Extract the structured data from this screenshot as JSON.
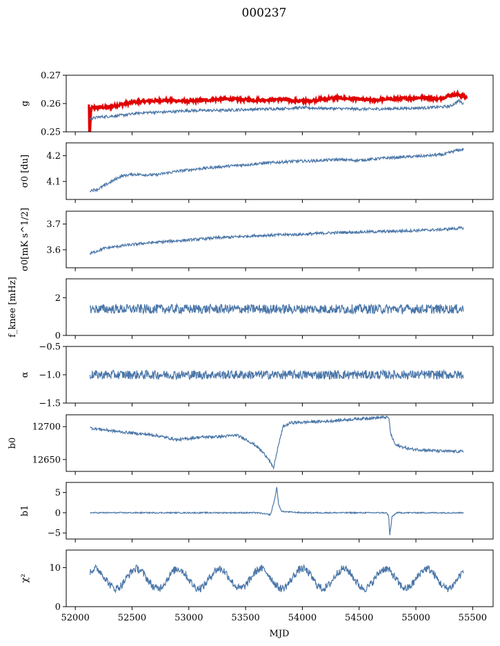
{
  "figure": {
    "title": "000237",
    "xlabel": "MJD",
    "x_ticks": [
      "52000",
      "52500",
      "53000",
      "53500",
      "54000",
      "54500",
      "55000",
      "55500"
    ]
  },
  "chart_data": [
    {
      "type": "line",
      "ylabel": "g",
      "ylim": [
        0.25,
        0.27
      ],
      "yticks": [
        0.25,
        0.26,
        0.27
      ],
      "ytick_labels": [
        "0.25",
        "0.26",
        "0.27"
      ],
      "series": [
        {
          "color": "#e00000",
          "points": [
            [
              52120,
              0.2595
            ],
            [
              52125,
              0.245
            ],
            [
              52140,
              0.2585
            ],
            [
              52300,
              0.2587
            ],
            [
              52500,
              0.2605
            ],
            [
              52800,
              0.2612
            ],
            [
              53000,
              0.2608
            ],
            [
              53300,
              0.2616
            ],
            [
              53600,
              0.2612
            ],
            [
              53800,
              0.2615
            ],
            [
              54000,
              0.2608
            ],
            [
              54300,
              0.262
            ],
            [
              54600,
              0.2612
            ],
            [
              54900,
              0.2618
            ],
            [
              55100,
              0.2622
            ],
            [
              55200,
              0.2615
            ],
            [
              55300,
              0.263
            ],
            [
              55380,
              0.2632
            ],
            [
              55450,
              0.262
            ]
          ]
        },
        {
          "color": "#4a76a8",
          "points": [
            [
              52130,
              0.2545
            ],
            [
              52200,
              0.2552
            ],
            [
              52400,
              0.2558
            ],
            [
              52600,
              0.2568
            ],
            [
              52800,
              0.257
            ],
            [
              53000,
              0.2575
            ],
            [
              53300,
              0.2576
            ],
            [
              53600,
              0.258
            ],
            [
              53800,
              0.2582
            ],
            [
              54000,
              0.2585
            ],
            [
              54300,
              0.2582
            ],
            [
              54600,
              0.258
            ],
            [
              54900,
              0.2583
            ],
            [
              55100,
              0.2585
            ],
            [
              55300,
              0.259
            ],
            [
              55380,
              0.261
            ],
            [
              55420,
              0.2598
            ]
          ]
        }
      ]
    },
    {
      "type": "line",
      "ylabel": "σ0 [du]",
      "ylim": [
        4.03,
        4.25
      ],
      "yticks": [
        4.1,
        4.2
      ],
      "ytick_labels": [
        "4.1",
        "4.2"
      ],
      "series": [
        {
          "color": "#4a76a8",
          "points": [
            [
              52130,
              4.065
            ],
            [
              52200,
              4.07
            ],
            [
              52300,
              4.095
            ],
            [
              52400,
              4.12
            ],
            [
              52500,
              4.128
            ],
            [
              52700,
              4.125
            ],
            [
              52900,
              4.14
            ],
            [
              53100,
              4.15
            ],
            [
              53300,
              4.158
            ],
            [
              53500,
              4.165
            ],
            [
              53700,
              4.172
            ],
            [
              53900,
              4.178
            ],
            [
              54100,
              4.18
            ],
            [
              54300,
              4.185
            ],
            [
              54500,
              4.182
            ],
            [
              54700,
              4.19
            ],
            [
              54900,
              4.195
            ],
            [
              55100,
              4.2
            ],
            [
              55250,
              4.205
            ],
            [
              55350,
              4.22
            ],
            [
              55420,
              4.225
            ]
          ]
        }
      ]
    },
    {
      "type": "line",
      "ylabel": "σ0[mK s^1/2]",
      "ylim": [
        3.53,
        3.75
      ],
      "yticks": [
        3.6,
        3.7
      ],
      "ytick_labels": [
        "3.6",
        "3.7"
      ],
      "series": [
        {
          "color": "#4a76a8",
          "points": [
            [
              52130,
              3.585
            ],
            [
              52250,
              3.605
            ],
            [
              52400,
              3.615
            ],
            [
              52600,
              3.625
            ],
            [
              52800,
              3.632
            ],
            [
              53000,
              3.638
            ],
            [
              53200,
              3.645
            ],
            [
              53400,
              3.65
            ],
            [
              53600,
              3.655
            ],
            [
              53800,
              3.658
            ],
            [
              54000,
              3.66
            ],
            [
              54200,
              3.665
            ],
            [
              54400,
              3.668
            ],
            [
              54600,
              3.67
            ],
            [
              54800,
              3.672
            ],
            [
              55000,
              3.675
            ],
            [
              55200,
              3.678
            ],
            [
              55420,
              3.685
            ]
          ]
        }
      ]
    },
    {
      "type": "line",
      "ylabel": "f_knee [mHz]",
      "ylim": [
        0,
        3
      ],
      "yticks": [
        0,
        2
      ],
      "ytick_labels": [
        "0",
        "2"
      ],
      "series": [
        {
          "color": "#4a76a8",
          "points": [
            [
              52130,
              1.4
            ],
            [
              52500,
              1.4
            ],
            [
              53000,
              1.4
            ],
            [
              53500,
              1.4
            ],
            [
              54000,
              1.4
            ],
            [
              54500,
              1.4
            ],
            [
              55000,
              1.4
            ],
            [
              55420,
              1.4
            ]
          ],
          "noise": 0.25
        }
      ]
    },
    {
      "type": "line",
      "ylabel": "α",
      "ylim": [
        -1.5,
        -0.5
      ],
      "yticks": [
        -1.5,
        -1.0,
        -0.5
      ],
      "ytick_labels": [
        "−1.5",
        "−1.0",
        "−0.5"
      ],
      "series": [
        {
          "color": "#4a76a8",
          "points": [
            [
              52130,
              -1.0
            ],
            [
              52500,
              -1.0
            ],
            [
              53000,
              -1.0
            ],
            [
              53500,
              -1.0
            ],
            [
              54000,
              -1.0
            ],
            [
              54500,
              -1.0
            ],
            [
              55000,
              -1.0
            ],
            [
              55420,
              -1.0
            ]
          ],
          "noise": 0.08
        }
      ]
    },
    {
      "type": "line",
      "ylabel": "b0",
      "ylim": [
        12632,
        12718
      ],
      "yticks": [
        12650,
        12700
      ],
      "ytick_labels": [
        "12650",
        "12700"
      ],
      "series": [
        {
          "color": "#4a76a8",
          "points": [
            [
              52130,
              12698
            ],
            [
              52400,
              12692
            ],
            [
              52700,
              12687
            ],
            [
              52900,
              12680
            ],
            [
              53100,
              12684
            ],
            [
              53300,
              12685
            ],
            [
              53420,
              12687
            ],
            [
              53500,
              12681
            ],
            [
              53600,
              12670
            ],
            [
              53700,
              12652
            ],
            [
              53745,
              12636
            ],
            [
              53780,
              12665
            ],
            [
              53830,
              12700
            ],
            [
              53900,
              12706
            ],
            [
              54200,
              12708
            ],
            [
              54500,
              12712
            ],
            [
              54700,
              12714
            ],
            [
              54760,
              12714
            ],
            [
              54780,
              12688
            ],
            [
              54820,
              12672
            ],
            [
              54950,
              12666
            ],
            [
              55200,
              12663
            ],
            [
              55420,
              12662
            ]
          ]
        }
      ]
    },
    {
      "type": "line",
      "ylabel": "b1",
      "ylim": [
        -6.5,
        7.5
      ],
      "yticks": [
        -5,
        0,
        5
      ],
      "ytick_labels": [
        "−5",
        "0",
        "5"
      ],
      "series": [
        {
          "color": "#4a76a8",
          "points": [
            [
              52130,
              0
            ],
            [
              53600,
              0
            ],
            [
              53720,
              -0.5
            ],
            [
              53760,
              3.8
            ],
            [
              53775,
              6.5
            ],
            [
              53790,
              2
            ],
            [
              53820,
              0.3
            ],
            [
              54000,
              0
            ],
            [
              54740,
              0
            ],
            [
              54760,
              -0.8
            ],
            [
              54770,
              -5.5
            ],
            [
              54790,
              -1
            ],
            [
              54830,
              0
            ],
            [
              55420,
              0
            ]
          ],
          "noise": 0.15
        }
      ]
    },
    {
      "type": "line",
      "ylabel": "χ²",
      "ylim": [
        0,
        14.5
      ],
      "yticks": [
        0,
        10
      ],
      "ytick_labels": [
        "0",
        "10"
      ],
      "series": [
        {
          "color": "#4a76a8",
          "points": [
            [
              52130,
              5.5
            ],
            [
              55420,
              8
            ]
          ],
          "periodic": {
            "amp": 2.5,
            "period": 365,
            "base": 7.2,
            "noise": 1.0
          }
        }
      ]
    }
  ]
}
